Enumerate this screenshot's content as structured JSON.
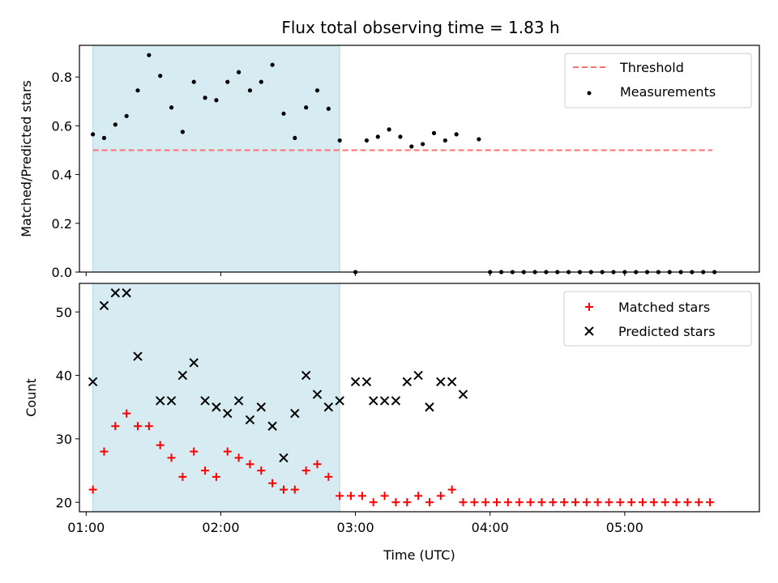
{
  "chart_data": [
    {
      "type": "scatter",
      "title": "Flux total observing time = 1.83 h",
      "xlabel": "",
      "ylabel": "Matched/Predicted stars",
      "xlim": [
        "00:57",
        "06:00"
      ],
      "ylim": [
        0,
        0.93
      ],
      "x_ticks": [
        "01:00",
        "02:00",
        "03:00",
        "04:00",
        "05:00"
      ],
      "y_ticks": [
        "0.0",
        "0.2",
        "0.4",
        "0.6",
        "0.8"
      ],
      "highlight_span": [
        "01:03",
        "02:53"
      ],
      "highlight_color": "#add8e6",
      "legend": {
        "placement": "upper right",
        "entries": [
          "Threshold",
          "Measurements"
        ]
      },
      "threshold": {
        "name": "Threshold",
        "value": 0.5,
        "x_range": [
          "01:03",
          "05:39"
        ],
        "color": "#ff6f6f",
        "style": "dashed"
      },
      "series": [
        {
          "name": "Measurements",
          "color": "#000000",
          "marker": "dot",
          "x": [
            "01:03",
            "01:08",
            "01:13",
            "01:18",
            "01:23",
            "01:28",
            "01:33",
            "01:38",
            "01:43",
            "01:48",
            "01:53",
            "01:58",
            "02:03",
            "02:08",
            "02:13",
            "02:18",
            "02:23",
            "02:28",
            "02:33",
            "02:38",
            "02:43",
            "02:48",
            "02:53",
            "03:00",
            "03:05",
            "03:10",
            "03:15",
            "03:20",
            "03:25",
            "03:30",
            "03:35",
            "03:40",
            "03:45",
            "03:55",
            "04:00",
            "04:05",
            "04:10",
            "04:15",
            "04:20",
            "04:25",
            "04:30",
            "04:35",
            "04:40",
            "04:45",
            "04:50",
            "04:55",
            "05:00",
            "05:05",
            "05:10",
            "05:15",
            "05:20",
            "05:25",
            "05:30",
            "05:35",
            "05:40"
          ],
          "values": [
            0.565,
            0.55,
            0.605,
            0.64,
            0.745,
            0.89,
            0.805,
            0.675,
            0.575,
            0.78,
            0.715,
            0.705,
            0.78,
            0.82,
            0.745,
            0.78,
            0.85,
            0.65,
            0.55,
            0.675,
            0.745,
            0.67,
            0.54,
            0.0,
            0.54,
            0.555,
            0.585,
            0.555,
            0.515,
            0.525,
            0.57,
            0.54,
            0.565,
            0.545,
            0.0,
            0.0,
            0.0,
            0.0,
            0.0,
            0.0,
            0.0,
            0.0,
            0.0,
            0.0,
            0.0,
            0.0,
            0.0,
            0.0,
            0.0,
            0.0,
            0.0,
            0.0,
            0.0,
            0.0,
            0.0
          ]
        }
      ]
    },
    {
      "type": "scatter",
      "title": "",
      "xlabel": "Time (UTC)",
      "ylabel": "Count",
      "xlim": [
        "00:57",
        "06:00"
      ],
      "ylim": [
        18.5,
        54.5
      ],
      "x_ticks": [
        "01:00",
        "02:00",
        "03:00",
        "04:00",
        "05:00"
      ],
      "y_ticks": [
        "20",
        "30",
        "40",
        "50"
      ],
      "highlight_span": [
        "01:03",
        "02:53"
      ],
      "highlight_color": "#add8e6",
      "legend": {
        "placement": "upper right",
        "entries": [
          "Matched stars",
          "Predicted stars"
        ]
      },
      "series": [
        {
          "name": "Matched stars",
          "color": "#ff0000",
          "marker": "plus",
          "x": [
            "01:03",
            "01:08",
            "01:13",
            "01:18",
            "01:23",
            "01:28",
            "01:33",
            "01:38",
            "01:43",
            "01:48",
            "01:53",
            "01:58",
            "02:03",
            "02:08",
            "02:13",
            "02:18",
            "02:23",
            "02:28",
            "02:33",
            "02:38",
            "02:43",
            "02:48",
            "02:53",
            "02:58",
            "03:03",
            "03:08",
            "03:13",
            "03:18",
            "03:23",
            "03:28",
            "03:33",
            "03:38",
            "03:43",
            "03:48",
            "03:53",
            "03:58",
            "04:03",
            "04:08",
            "04:13",
            "04:18",
            "04:23",
            "04:28",
            "04:33",
            "04:38",
            "04:43",
            "04:48",
            "04:53",
            "04:58",
            "05:03",
            "05:08",
            "05:13",
            "05:18",
            "05:23",
            "05:28",
            "05:33",
            "05:38"
          ],
          "values": [
            22,
            28,
            32,
            34,
            32,
            32,
            29,
            27,
            24,
            28,
            25,
            24,
            28,
            27,
            26,
            25,
            23,
            22,
            22,
            25,
            26,
            24,
            21,
            21,
            21,
            20,
            21,
            20,
            20,
            21,
            20,
            21,
            22,
            20,
            20,
            20,
            20,
            20,
            20,
            20,
            20,
            20,
            20,
            20,
            20,
            20,
            20,
            20,
            20,
            20,
            20,
            20,
            20,
            20,
            20,
            20
          ]
        },
        {
          "name": "Predicted stars",
          "color": "#000000",
          "marker": "x",
          "x": [
            "01:03",
            "01:08",
            "01:13",
            "01:18",
            "01:23",
            "01:33",
            "01:38",
            "01:43",
            "01:48",
            "01:53",
            "01:58",
            "02:03",
            "02:08",
            "02:13",
            "02:18",
            "02:23",
            "02:28",
            "02:33",
            "02:38",
            "02:43",
            "02:48",
            "02:53",
            "03:00",
            "03:05",
            "03:08",
            "03:13",
            "03:18",
            "03:23",
            "03:28",
            "03:33",
            "03:38",
            "03:43",
            "03:48"
          ],
          "values": [
            39,
            51,
            53,
            53,
            43,
            36,
            36,
            40,
            42,
            36,
            35,
            34,
            36,
            33,
            35,
            32,
            27,
            34,
            40,
            37,
            35,
            36,
            39,
            39,
            36,
            36,
            36,
            39,
            40,
            35,
            39,
            39,
            37
          ]
        }
      ]
    }
  ]
}
